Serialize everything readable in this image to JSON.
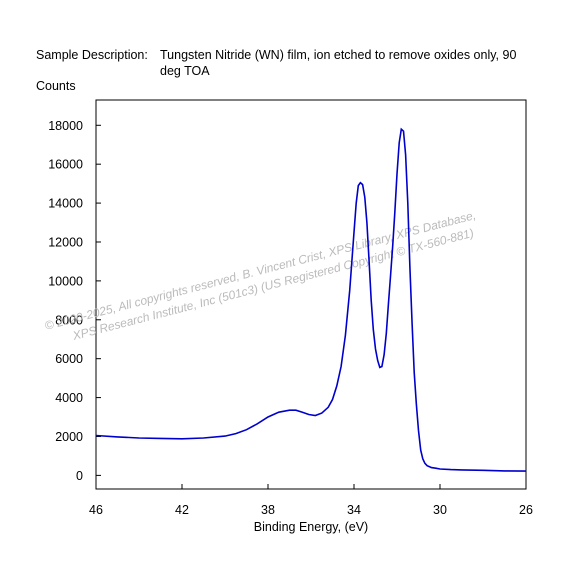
{
  "header": {
    "description_label": "Sample Description:",
    "description_text": "Tungsten Nitride (WN) film, ion etched to remove oxides only, 90 deg TOA"
  },
  "watermark": {
    "line1": "© 2020-2025,  All copyrights reserved,   B. Vincent Crist,  XPS Library, XPS Database,",
    "line2": "XPS Research Institute, Inc (501c3)   (US Registered Copyright © TX-560-881)"
  },
  "chart_data": {
    "type": "line",
    "title": "",
    "xlabel": "Binding Energy, (eV)",
    "ylabel": "Counts",
    "xlim": [
      46,
      26
    ],
    "ylim": [
      -700,
      19300
    ],
    "x_reversed": true,
    "xticks": [
      46,
      42,
      38,
      34,
      30,
      26
    ],
    "yticks": [
      0,
      2000,
      4000,
      6000,
      8000,
      10000,
      12000,
      14000,
      16000,
      18000
    ],
    "grid": false,
    "series": [
      {
        "color": "#0000cc",
        "x": [
          46.0,
          45.0,
          44.0,
          43.0,
          42.0,
          41.0,
          40.0,
          39.5,
          39.0,
          38.5,
          38.0,
          37.5,
          37.0,
          36.7,
          36.4,
          36.1,
          35.8,
          35.5,
          35.2,
          35.0,
          34.8,
          34.6,
          34.4,
          34.2,
          34.0,
          33.9,
          33.8,
          33.7,
          33.6,
          33.5,
          33.4,
          33.3,
          33.2,
          33.1,
          33.0,
          32.9,
          32.8,
          32.7,
          32.6,
          32.5,
          32.4,
          32.3,
          32.2,
          32.1,
          32.0,
          31.9,
          31.8,
          31.7,
          31.6,
          31.5,
          31.4,
          31.3,
          31.2,
          31.1,
          31.0,
          30.9,
          30.8,
          30.7,
          30.6,
          30.5,
          30.4,
          30.2,
          30.0,
          29.5,
          29.0,
          28.0,
          27.0,
          26.0
        ],
        "y": [
          2050,
          1980,
          1920,
          1900,
          1880,
          1920,
          2020,
          2150,
          2350,
          2650,
          3000,
          3250,
          3350,
          3350,
          3250,
          3130,
          3080,
          3200,
          3500,
          3900,
          4600,
          5600,
          7200,
          9500,
          12500,
          14000,
          14900,
          15050,
          14950,
          14300,
          13000,
          11000,
          9000,
          7500,
          6500,
          5900,
          5550,
          5600,
          6200,
          7300,
          8800,
          10300,
          11800,
          13500,
          15500,
          17100,
          17800,
          17700,
          16500,
          14000,
          10700,
          7800,
          5300,
          3700,
          2300,
          1300,
          850,
          620,
          500,
          450,
          400,
          370,
          330,
          300,
          280,
          260,
          230,
          220
        ]
      }
    ]
  }
}
